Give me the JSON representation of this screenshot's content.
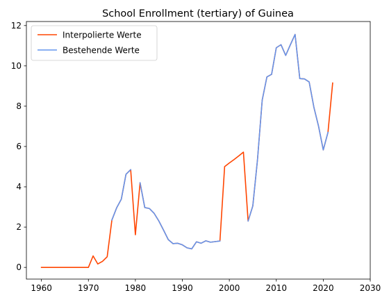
{
  "chart_data": {
    "type": "line",
    "title": "School Enrollment (tertiary) of Guinea",
    "xlabel": "",
    "ylabel": "",
    "xlim": [
      1956.8,
      2030
    ],
    "ylim": [
      -0.58,
      12.2
    ],
    "xticks": [
      1960,
      1970,
      1980,
      1990,
      2000,
      2010,
      2020,
      2030
    ],
    "yticks": [
      0,
      2,
      4,
      6,
      8,
      10,
      12
    ],
    "grid": false,
    "legend": "top-left",
    "series": [
      {
        "name": "Interpolierte Werte",
        "color": "#ff4500",
        "points": [
          [
            1960,
            0.0
          ],
          [
            1961,
            0.0
          ],
          [
            1962,
            0.0
          ],
          [
            1963,
            0.0
          ],
          [
            1964,
            0.0
          ],
          [
            1965,
            0.0
          ],
          [
            1966,
            0.0
          ],
          [
            1967,
            0.0
          ],
          [
            1968,
            0.0
          ],
          [
            1969,
            0.0
          ],
          [
            1970,
            0.0
          ],
          [
            1971,
            0.57
          ],
          [
            1972,
            0.17
          ],
          [
            1973,
            0.3
          ],
          [
            1974,
            0.53
          ],
          [
            1975,
            2.35
          ],
          [
            1976,
            2.95
          ],
          [
            1977,
            3.38
          ],
          [
            1978,
            4.62
          ],
          [
            1979,
            4.85
          ],
          [
            1980,
            1.62
          ],
          [
            1981,
            4.2
          ],
          [
            1982,
            2.97
          ],
          [
            1983,
            2.92
          ],
          [
            1984,
            2.68
          ],
          [
            1985,
            2.3
          ],
          [
            1986,
            1.85
          ],
          [
            1987,
            1.38
          ],
          [
            1988,
            1.18
          ],
          [
            1989,
            1.2
          ],
          [
            1990,
            1.12
          ],
          [
            1991,
            0.97
          ],
          [
            1992,
            0.92
          ],
          [
            1993,
            1.27
          ],
          [
            1994,
            1.2
          ],
          [
            1995,
            1.32
          ],
          [
            1996,
            1.25
          ],
          [
            1997,
            1.28
          ],
          [
            1998,
            1.31
          ],
          [
            1999,
            5.0
          ],
          [
            2000,
            5.18
          ],
          [
            2001,
            5.35
          ],
          [
            2002,
            5.53
          ],
          [
            2003,
            5.72
          ],
          [
            2004,
            2.3
          ],
          [
            2005,
            3.05
          ],
          [
            2006,
            5.35
          ],
          [
            2007,
            8.3
          ],
          [
            2008,
            9.45
          ],
          [
            2009,
            9.58
          ],
          [
            2010,
            10.9
          ],
          [
            2011,
            11.05
          ],
          [
            2012,
            10.52
          ],
          [
            2013,
            11.05
          ],
          [
            2014,
            11.56
          ],
          [
            2015,
            9.37
          ],
          [
            2016,
            9.35
          ],
          [
            2017,
            9.2
          ],
          [
            2018,
            7.95
          ],
          [
            2019,
            7.0
          ],
          [
            2020,
            5.83
          ],
          [
            2021,
            6.7
          ],
          [
            2022,
            9.15
          ]
        ]
      },
      {
        "name": "Bestehende Werte",
        "color": "#6495ed",
        "segments": [
          [
            [
              1975,
              2.35
            ],
            [
              1976,
              2.95
            ],
            [
              1977,
              3.38
            ],
            [
              1978,
              4.62
            ],
            [
              1979,
              4.85
            ]
          ],
          [
            [
              1981,
              4.2
            ],
            [
              1982,
              2.97
            ],
            [
              1983,
              2.92
            ],
            [
              1984,
              2.68
            ],
            [
              1985,
              2.3
            ],
            [
              1986,
              1.85
            ],
            [
              1987,
              1.38
            ],
            [
              1988,
              1.18
            ],
            [
              1989,
              1.2
            ],
            [
              1990,
              1.12
            ],
            [
              1991,
              0.97
            ],
            [
              1992,
              0.92
            ],
            [
              1993,
              1.27
            ],
            [
              1994,
              1.2
            ],
            [
              1995,
              1.32
            ],
            [
              1996,
              1.25
            ],
            [
              1997,
              1.28
            ],
            [
              1998,
              1.31
            ]
          ],
          [
            [
              2004,
              2.3
            ],
            [
              2005,
              3.05
            ],
            [
              2006,
              5.35
            ],
            [
              2007,
              8.3
            ],
            [
              2008,
              9.45
            ],
            [
              2009,
              9.58
            ],
            [
              2010,
              10.9
            ],
            [
              2011,
              11.05
            ],
            [
              2012,
              10.52
            ],
            [
              2013,
              11.05
            ],
            [
              2014,
              11.56
            ],
            [
              2015,
              9.37
            ],
            [
              2016,
              9.35
            ],
            [
              2017,
              9.2
            ],
            [
              2018,
              7.95
            ],
            [
              2019,
              7.0
            ],
            [
              2020,
              5.83
            ],
            [
              2021,
              6.7
            ]
          ]
        ]
      }
    ]
  }
}
